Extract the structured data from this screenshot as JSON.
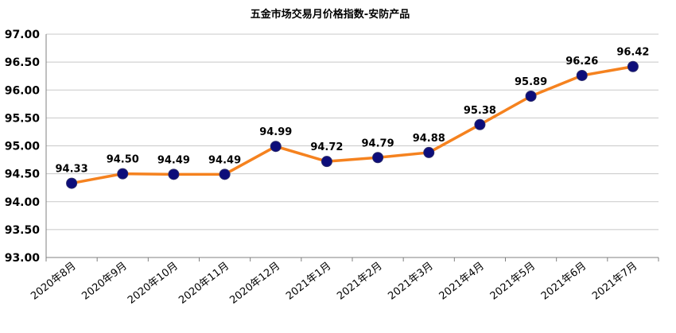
{
  "chart_data": {
    "type": "line",
    "title": "五金市场交易月价格指数-安防产品",
    "xlabel": "",
    "ylabel": "",
    "categories": [
      "2020年8月",
      "2020年9月",
      "2020年10月",
      "2020年11月",
      "2020年12月",
      "2021年1月",
      "2021年2月",
      "2021年3月",
      "2021年4月",
      "2021年5月",
      "2021年6月",
      "2021年7月"
    ],
    "series": [
      {
        "values": [
          94.33,
          94.5,
          94.49,
          94.49,
          94.99,
          94.72,
          94.79,
          94.88,
          95.38,
          95.89,
          96.26,
          96.42
        ]
      }
    ],
    "data_labels": [
      "94.33",
      "94.50",
      "94.49",
      "94.49",
      "94.99",
      "94.72",
      "94.79",
      "94.88",
      "95.38",
      "95.89",
      "96.26",
      "96.42"
    ],
    "yticks": [
      "93.00",
      "93.50",
      "94.00",
      "94.50",
      "95.00",
      "95.50",
      "96.00",
      "96.50",
      "97.00"
    ],
    "ylim": [
      93,
      97
    ],
    "grid": true,
    "line_color": "#F5821F",
    "marker_color": "#0D0D7A"
  }
}
